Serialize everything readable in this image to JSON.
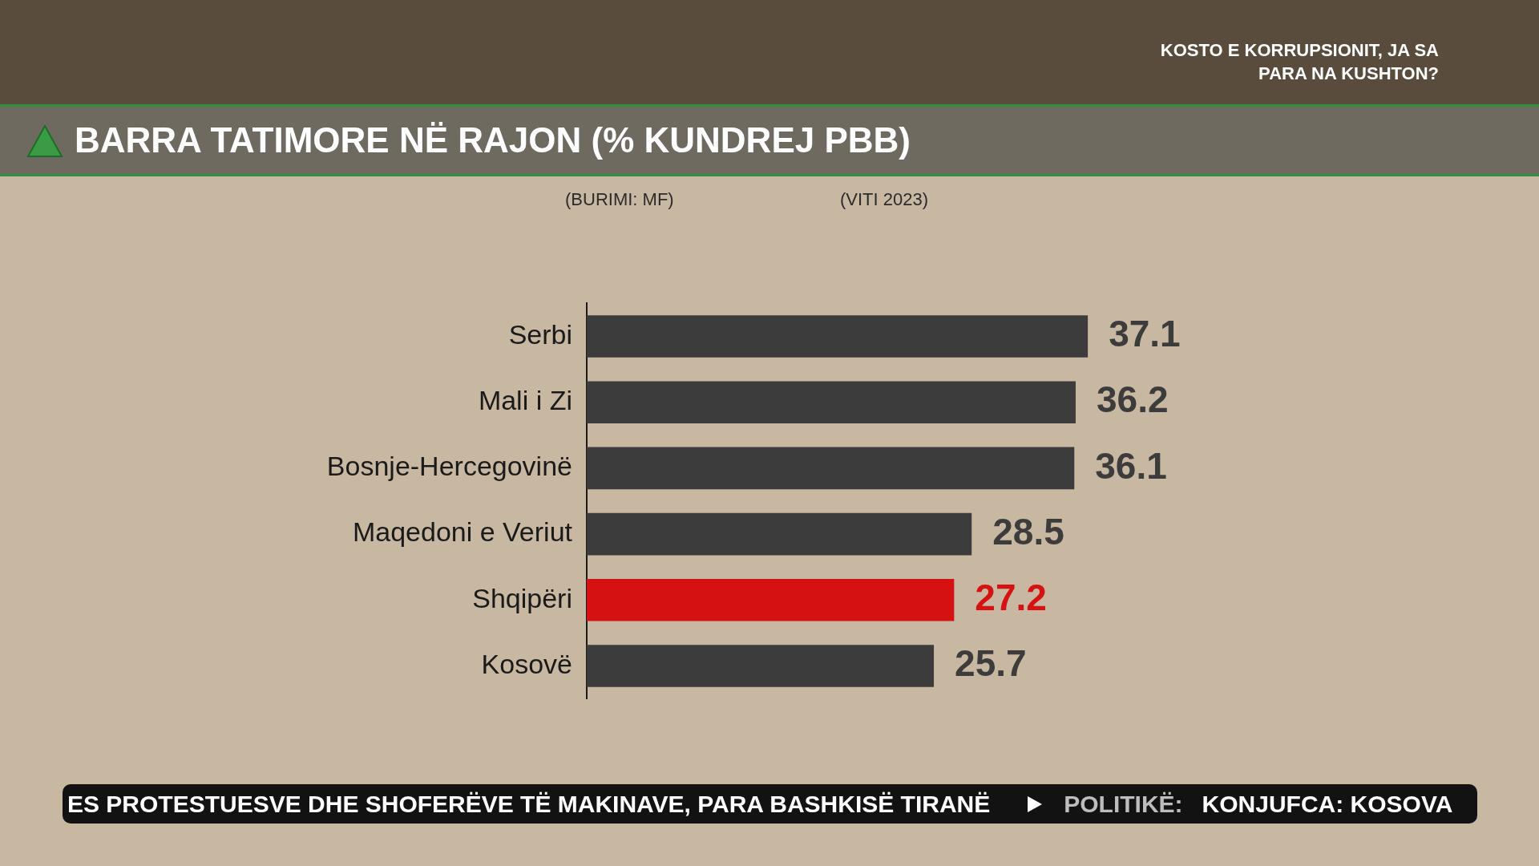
{
  "chart_data": {
    "type": "bar",
    "orientation": "horizontal",
    "title": "BARRA TATIMORE NË RAJON (% KUNDREJ PBB)",
    "subtitle": "KOSTO E KORRUPSIONIT, JA SA PARA NA KUSHTON?",
    "annotations": [
      "(BURIMI: MF)",
      "(VITI 2023)",
      "ES PROTESTUESVE DHE SHOFERËVE TË MAKINAVE, PARA BASHKISË TIRANË",
      "POLITIKË:",
      "KONJUFCA: KOSOVA"
    ],
    "categories": [
      "Serbi",
      "Mali i Zi",
      "Bosnje-Hercegovinë",
      "Maqedoni e Veriut",
      "Shqipëri",
      "Kosovë"
    ],
    "values": [
      37.1,
      36.2,
      36.1,
      28.5,
      27.2,
      25.7
    ],
    "colors": [
      "#3c3c3c",
      "#3c3c3c",
      "#3c3c3c",
      "#3c3c3c",
      "#d61111",
      "#3c3c3c"
    ],
    "data_labels": true,
    "tick_labels": "y",
    "grid": false,
    "legend": false
  }
}
